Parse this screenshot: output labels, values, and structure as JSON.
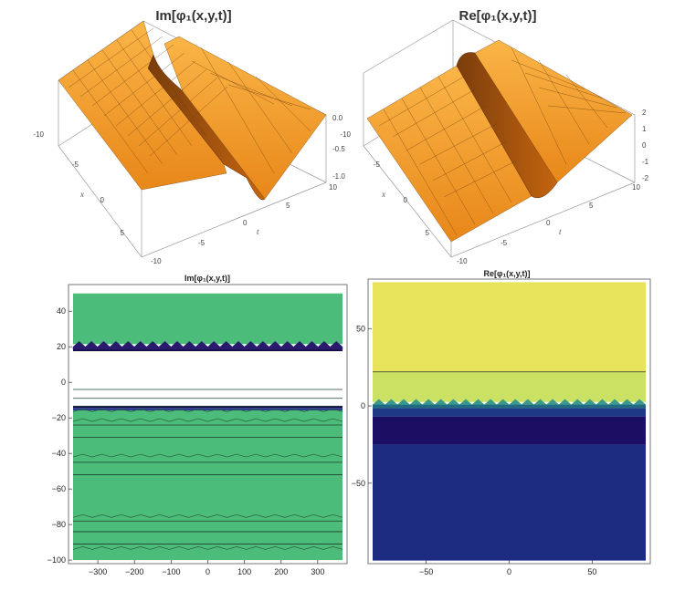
{
  "chart_data": [
    {
      "type": "surface3d",
      "title": "Im[φ₁(x,y,t)]",
      "xlabel": "x",
      "tlabel": "t",
      "x_ticks": [
        "-10",
        "-5",
        "0",
        "5"
      ],
      "t_ticks": [
        "-10",
        "-5",
        "0",
        "5",
        "10"
      ],
      "z_ticks": [
        "0.0",
        "-0.5",
        "-1.0"
      ],
      "zlim": [
        -1.2,
        0.0
      ],
      "shape": "dark soliton trough",
      "surface_color": "#f59a1c"
    },
    {
      "type": "surface3d",
      "title": "Re[φ₁(x,y,t)]",
      "xlabel": "x",
      "tlabel": "t",
      "x_ticks": [
        "-10",
        "-5",
        "0",
        "5"
      ],
      "t_ticks": [
        "-10",
        "-5",
        "0",
        "5",
        "10"
      ],
      "z_ticks": [
        "2",
        "1",
        "0",
        "-1",
        "-2"
      ],
      "zlim": [
        -2,
        2
      ],
      "shape": "kink step",
      "surface_color": "#f59a1c"
    },
    {
      "type": "contour",
      "title": "Im[φ₁(x,y,t)]",
      "xlim": [
        -380,
        380
      ],
      "ylim": [
        -102,
        55
      ],
      "x_ticks": [
        -300,
        -200,
        -100,
        0,
        100,
        200,
        300
      ],
      "y_ticks": [
        40,
        20,
        0,
        -20,
        -40,
        -60,
        -80,
        -100
      ],
      "regions": [
        {
          "y0": 21.5,
          "y1": 50,
          "color": "#4bbc79"
        },
        {
          "y0": 18.5,
          "y1": 21.5,
          "color": "#2a1a6e",
          "zigzag_top": true
        },
        {
          "y0": 17.5,
          "y1": 18.5,
          "color": "#160c4a"
        },
        {
          "y0": -14.3,
          "y1": -13.2,
          "color": "#160c4a"
        },
        {
          "y0": -15.8,
          "y1": -14.3,
          "color": "#2b3c8c"
        },
        {
          "y0": -100,
          "y1": -15.8,
          "color": "#4bbc79"
        }
      ],
      "contour_lines": [
        -4,
        -9,
        -13.5,
        -24,
        -31,
        -45,
        -52,
        -78,
        -84,
        -91
      ],
      "zigzag_lines": [
        -16.5,
        -22,
        -42,
        -76,
        -94
      ]
    },
    {
      "type": "contour",
      "title": "Re[φ₁(x,y,t)]",
      "xlim": [
        -85,
        85
      ],
      "ylim": [
        -102,
        82
      ],
      "x_ticks": [
        -50,
        0,
        50
      ],
      "y_ticks": [
        50,
        0,
        -50
      ],
      "regions": [
        {
          "y0": 22,
          "y1": 80,
          "color": "#e7e35a"
        },
        {
          "y0": 2.5,
          "y1": 22,
          "color": "#cbe164"
        },
        {
          "y0": 0.8,
          "y1": 2.5,
          "color": "#3a9a8a",
          "zigzag_top": true
        },
        {
          "y0": -1.5,
          "y1": 0.8,
          "color": "#226a84"
        },
        {
          "y0": -7,
          "y1": -1.5,
          "color": "#1e3a84"
        },
        {
          "y0": -25,
          "y1": -7,
          "color": "#1b0e63"
        },
        {
          "y0": -100,
          "y1": -25,
          "color": "#1d2c80"
        }
      ],
      "contour_lines": [
        22
      ],
      "zigzag_lines": []
    }
  ]
}
